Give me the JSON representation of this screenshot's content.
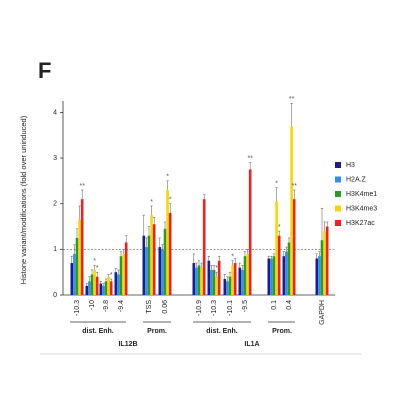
{
  "chart_data": {
    "type": "bar",
    "panel_label": "F",
    "ylabel": "Histone variant/modifications (fold over uninduced)",
    "categories": [
      "-10.3",
      "-10",
      "-9.8",
      "-9.4",
      "TSS",
      "0.06",
      "-10.9",
      "-10.3",
      "-10.1",
      "-9.5",
      "0.1",
      "0.4",
      "GAPDH"
    ],
    "groups": [
      {
        "label": "dist. Enh."
      },
      {
        "label": "Prom."
      },
      {
        "label": "dist. Enh."
      },
      {
        "label": "Prom."
      }
    ],
    "genes": [
      {
        "label": "IL12B"
      },
      {
        "label": "IL1A"
      }
    ],
    "series": [
      {
        "name": "H3",
        "color": "#1c1c8f",
        "values": [
          0.7,
          0.2,
          0.25,
          0.5,
          1.3,
          1.05,
          0.7,
          0.75,
          0.35,
          0.6,
          0.8,
          0.85,
          0.8
        ],
        "errors": [
          0.15,
          0.05,
          0.05,
          0.08,
          0.45,
          0.2,
          0.2,
          0.1,
          0.1,
          0.1,
          0.05,
          0.1,
          0.1
        ],
        "annotations": [
          null,
          null,
          null,
          null,
          null,
          null,
          null,
          null,
          null,
          null,
          null,
          null,
          null
        ]
      },
      {
        "name": "H2A.Z",
        "color": "#2e8ff0",
        "values": [
          0.9,
          0.3,
          0.2,
          0.45,
          1.05,
          1.0,
          0.6,
          0.55,
          0.3,
          0.55,
          0.8,
          0.95,
          0.85
        ],
        "errors": [
          0.2,
          0.1,
          0.05,
          0.1,
          0.2,
          0.1,
          0.1,
          0.1,
          0.1,
          0.1,
          0.05,
          0.1,
          0.1
        ],
        "annotations": [
          null,
          null,
          null,
          null,
          null,
          null,
          null,
          null,
          null,
          null,
          null,
          null,
          null
        ]
      },
      {
        "name": "H3K4me1",
        "color": "#2a9a2a",
        "values": [
          1.25,
          0.45,
          0.3,
          0.85,
          1.3,
          1.45,
          0.65,
          0.55,
          0.4,
          0.85,
          0.85,
          1.15,
          1.2
        ],
        "errors": [
          0.2,
          0.1,
          0.05,
          0.1,
          0.2,
          0.15,
          0.1,
          0.1,
          0.1,
          0.1,
          0.05,
          0.1,
          0.7
        ],
        "annotations": [
          null,
          null,
          null,
          null,
          null,
          null,
          null,
          null,
          null,
          null,
          null,
          null,
          null
        ]
      },
      {
        "name": "H3K4me3",
        "color": "#f5d800",
        "values": [
          1.65,
          0.55,
          0.4,
          0.9,
          1.75,
          2.3,
          0.6,
          0.4,
          0.65,
          0.9,
          2.05,
          3.7,
          1.4
        ],
        "errors": [
          0.3,
          0.1,
          0.05,
          0.1,
          0.2,
          0.2,
          0.1,
          0.1,
          0.1,
          0.1,
          0.3,
          0.5,
          0.2
        ],
        "annotations": [
          null,
          "*",
          null,
          null,
          "*",
          "*",
          null,
          "*",
          "*",
          null,
          "*",
          "**",
          null
        ]
      },
      {
        "name": "H3K27ac",
        "color": "#f02020",
        "values": [
          2.1,
          0.4,
          0.3,
          1.15,
          1.55,
          1.8,
          2.1,
          0.75,
          0.7,
          2.75,
          1.3,
          2.1,
          1.5
        ],
        "errors": [
          0.2,
          0.1,
          0.05,
          0.15,
          0.15,
          0.2,
          0.1,
          0.1,
          0.1,
          0.15,
          0.1,
          0.2,
          0.1
        ],
        "annotations": [
          "**",
          "*",
          "*",
          null,
          null,
          "*",
          null,
          null,
          null,
          "**",
          "*",
          "**",
          null
        ]
      }
    ],
    "ylim": [
      0,
      4.25
    ],
    "yticks": [
      0,
      1,
      2,
      3,
      4
    ],
    "hline": 1,
    "grid": false
  }
}
